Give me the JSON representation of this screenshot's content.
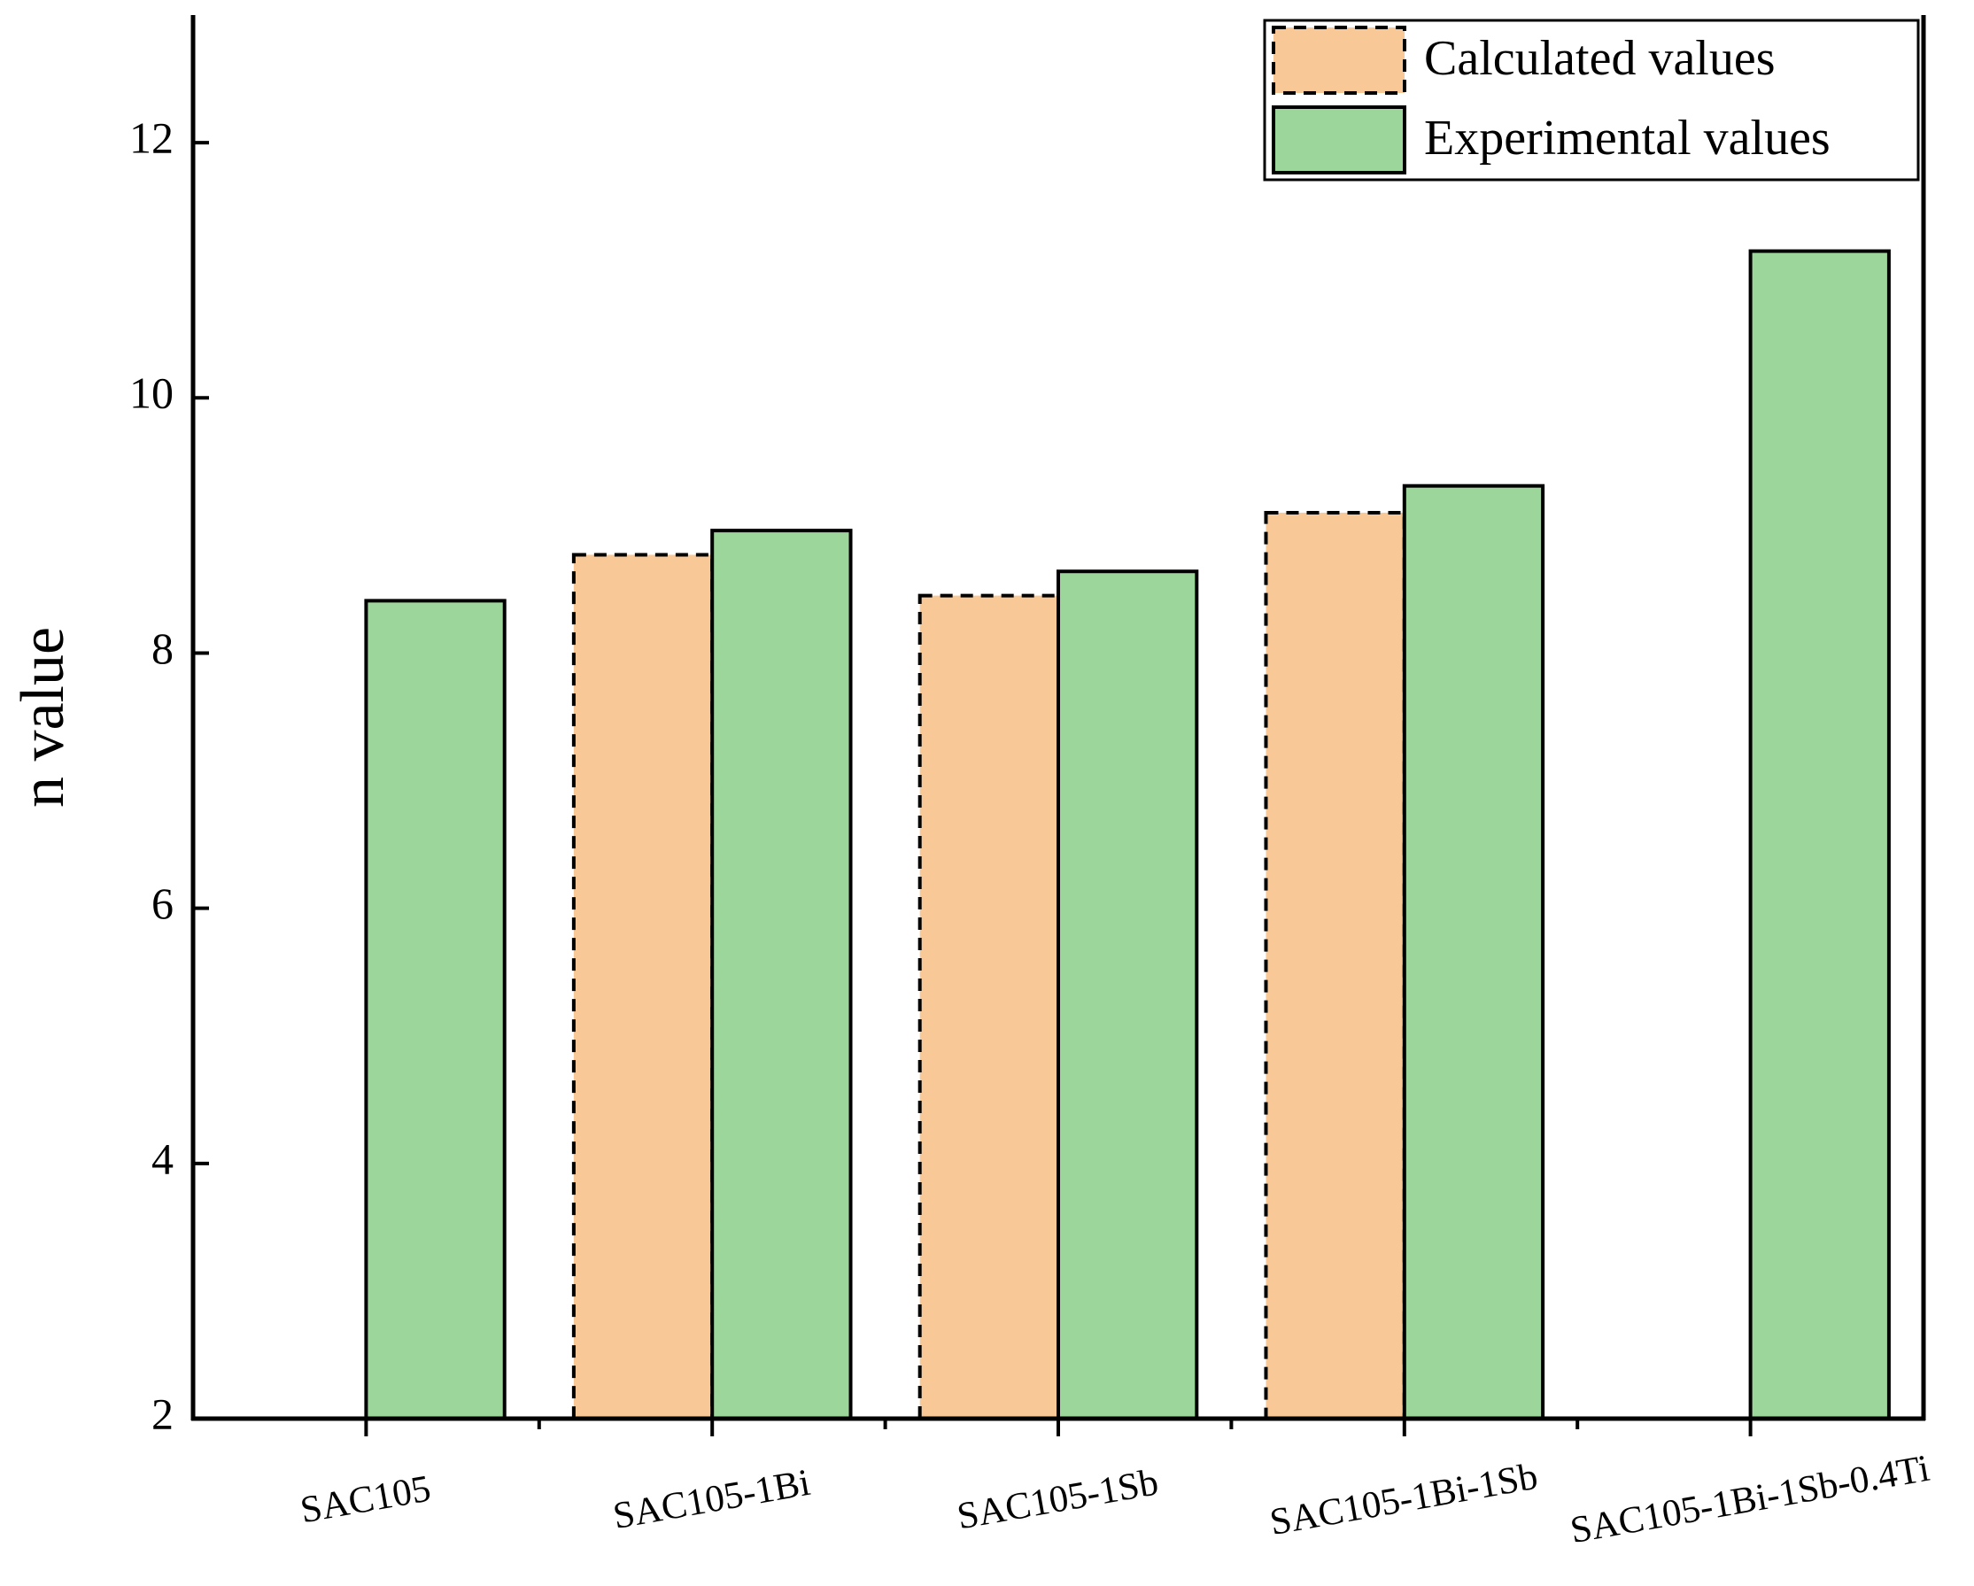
{
  "chart_data": {
    "type": "bar",
    "y_label": "n value",
    "categories": [
      "SAC105",
      "SAC105-1Bi",
      "SAC105-1Sb",
      "SAC105-1Bi-1Sb",
      "SAC105-1Bi-1Sb-0.4Ti"
    ],
    "series": [
      {
        "name": "Calculated values",
        "color": "#f9c897",
        "dashed": true,
        "values": [
          null,
          8.77,
          8.45,
          9.1,
          null
        ]
      },
      {
        "name": "Experimental values",
        "color": "#9dd69a",
        "dashed": false,
        "values": [
          8.41,
          8.96,
          8.64,
          9.31,
          11.15
        ]
      }
    ],
    "ylim": [
      2,
      13
    ],
    "yticks": [
      2,
      4,
      6,
      8,
      10,
      12
    ],
    "legend": "upper right"
  }
}
